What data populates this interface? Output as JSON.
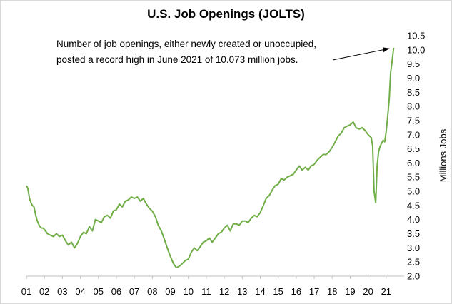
{
  "chart_data": {
    "type": "line",
    "title": "U.S. Job Openings (JOLTS)",
    "ylabel": "Millions Jobs",
    "xlabel": "",
    "ylim": [
      2.0,
      10.5
    ],
    "y_ticks": [
      "2.0",
      "2.5",
      "3.0",
      "3.5",
      "4.0",
      "4.5",
      "5.0",
      "5.5",
      "6.0",
      "6.5",
      "7.0",
      "7.5",
      "8.0",
      "8.5",
      "9.0",
      "9.5",
      "10.0",
      "10.5"
    ],
    "x_ticks": [
      "01",
      "02",
      "03",
      "04",
      "05",
      "06",
      "07",
      "08",
      "09",
      "10",
      "11",
      "12",
      "13",
      "14",
      "15",
      "16",
      "17",
      "18",
      "19",
      "20",
      "21"
    ],
    "xlim": [
      2001.0,
      2022.0
    ],
    "grid": false,
    "line_color": "#70ad47",
    "annotation": {
      "lines": [
        "Number of job openings, either newly created or unoccupied,",
        "posted a record high in June 2021 of 10.073 million jobs."
      ],
      "arrow_target": [
        2021.42,
        10.073
      ]
    },
    "series": [
      {
        "x": [
          2001.0,
          2001.08,
          2001.17,
          2001.25,
          2001.33,
          2001.42,
          2001.5,
          2001.58,
          2001.67,
          2001.75,
          2001.83,
          2001.92,
          2002.0,
          2002.17,
          2002.33,
          2002.5,
          2002.67,
          2002.83,
          2003.0,
          2003.17,
          2003.33,
          2003.5,
          2003.67,
          2003.83,
          2004.0,
          2004.17,
          2004.33,
          2004.5,
          2004.67,
          2004.83,
          2005.0,
          2005.17,
          2005.33,
          2005.5,
          2005.67,
          2005.83,
          2006.0,
          2006.17,
          2006.33,
          2006.5,
          2006.67,
          2006.83,
          2007.0,
          2007.17,
          2007.33,
          2007.5,
          2007.67,
          2007.83,
          2008.0,
          2008.17,
          2008.33,
          2008.5,
          2008.67,
          2008.83,
          2009.0,
          2009.17,
          2009.33,
          2009.5,
          2009.67,
          2009.83,
          2010.0,
          2010.17,
          2010.33,
          2010.5,
          2010.67,
          2010.83,
          2011.0,
          2011.17,
          2011.33,
          2011.5,
          2011.67,
          2011.83,
          2012.0,
          2012.17,
          2012.33,
          2012.5,
          2012.67,
          2012.83,
          2013.0,
          2013.17,
          2013.33,
          2013.5,
          2013.67,
          2013.83,
          2014.0,
          2014.17,
          2014.33,
          2014.5,
          2014.67,
          2014.83,
          2015.0,
          2015.17,
          2015.33,
          2015.5,
          2015.67,
          2015.83,
          2016.0,
          2016.17,
          2016.33,
          2016.5,
          2016.67,
          2016.83,
          2017.0,
          2017.17,
          2017.33,
          2017.5,
          2017.67,
          2017.83,
          2018.0,
          2018.17,
          2018.33,
          2018.5,
          2018.67,
          2018.83,
          2019.0,
          2019.17,
          2019.33,
          2019.5,
          2019.67,
          2019.83,
          2020.0,
          2020.08,
          2020.17,
          2020.25,
          2020.33,
          2020.42,
          2020.5,
          2020.58,
          2020.67,
          2020.75,
          2020.83,
          2020.92,
          2021.0,
          2021.08,
          2021.17,
          2021.25,
          2021.33,
          2021.42
        ],
        "values": [
          5.2,
          5.1,
          4.75,
          4.6,
          4.5,
          4.45,
          4.2,
          4.0,
          3.85,
          3.75,
          3.7,
          3.7,
          3.65,
          3.5,
          3.45,
          3.4,
          3.5,
          3.4,
          3.45,
          3.25,
          3.1,
          3.2,
          3.0,
          3.15,
          3.4,
          3.55,
          3.5,
          3.75,
          3.6,
          4.0,
          3.95,
          3.9,
          4.1,
          4.15,
          4.05,
          4.3,
          4.35,
          4.55,
          4.45,
          4.65,
          4.7,
          4.8,
          4.75,
          4.8,
          4.65,
          4.75,
          4.55,
          4.4,
          4.3,
          4.1,
          3.8,
          3.6,
          3.3,
          3.0,
          2.7,
          2.45,
          2.3,
          2.35,
          2.45,
          2.55,
          2.6,
          2.85,
          3.0,
          2.9,
          3.05,
          3.2,
          3.25,
          3.35,
          3.2,
          3.35,
          3.5,
          3.55,
          3.7,
          3.8,
          3.6,
          3.85,
          3.85,
          3.8,
          3.95,
          3.95,
          3.9,
          4.05,
          4.15,
          4.1,
          4.25,
          4.5,
          4.75,
          4.85,
          5.05,
          5.2,
          5.25,
          5.45,
          5.4,
          5.5,
          5.55,
          5.6,
          5.75,
          5.9,
          5.75,
          5.85,
          5.75,
          5.9,
          5.95,
          6.1,
          6.2,
          6.3,
          6.3,
          6.4,
          6.55,
          6.75,
          6.95,
          7.05,
          7.25,
          7.3,
          7.35,
          7.45,
          7.25,
          7.2,
          7.25,
          7.15,
          7.0,
          6.95,
          6.9,
          6.6,
          5.0,
          4.6,
          5.9,
          6.4,
          6.6,
          6.7,
          6.8,
          6.75,
          7.1,
          7.6,
          8.25,
          9.2,
          9.6,
          10.073
        ]
      }
    ]
  }
}
